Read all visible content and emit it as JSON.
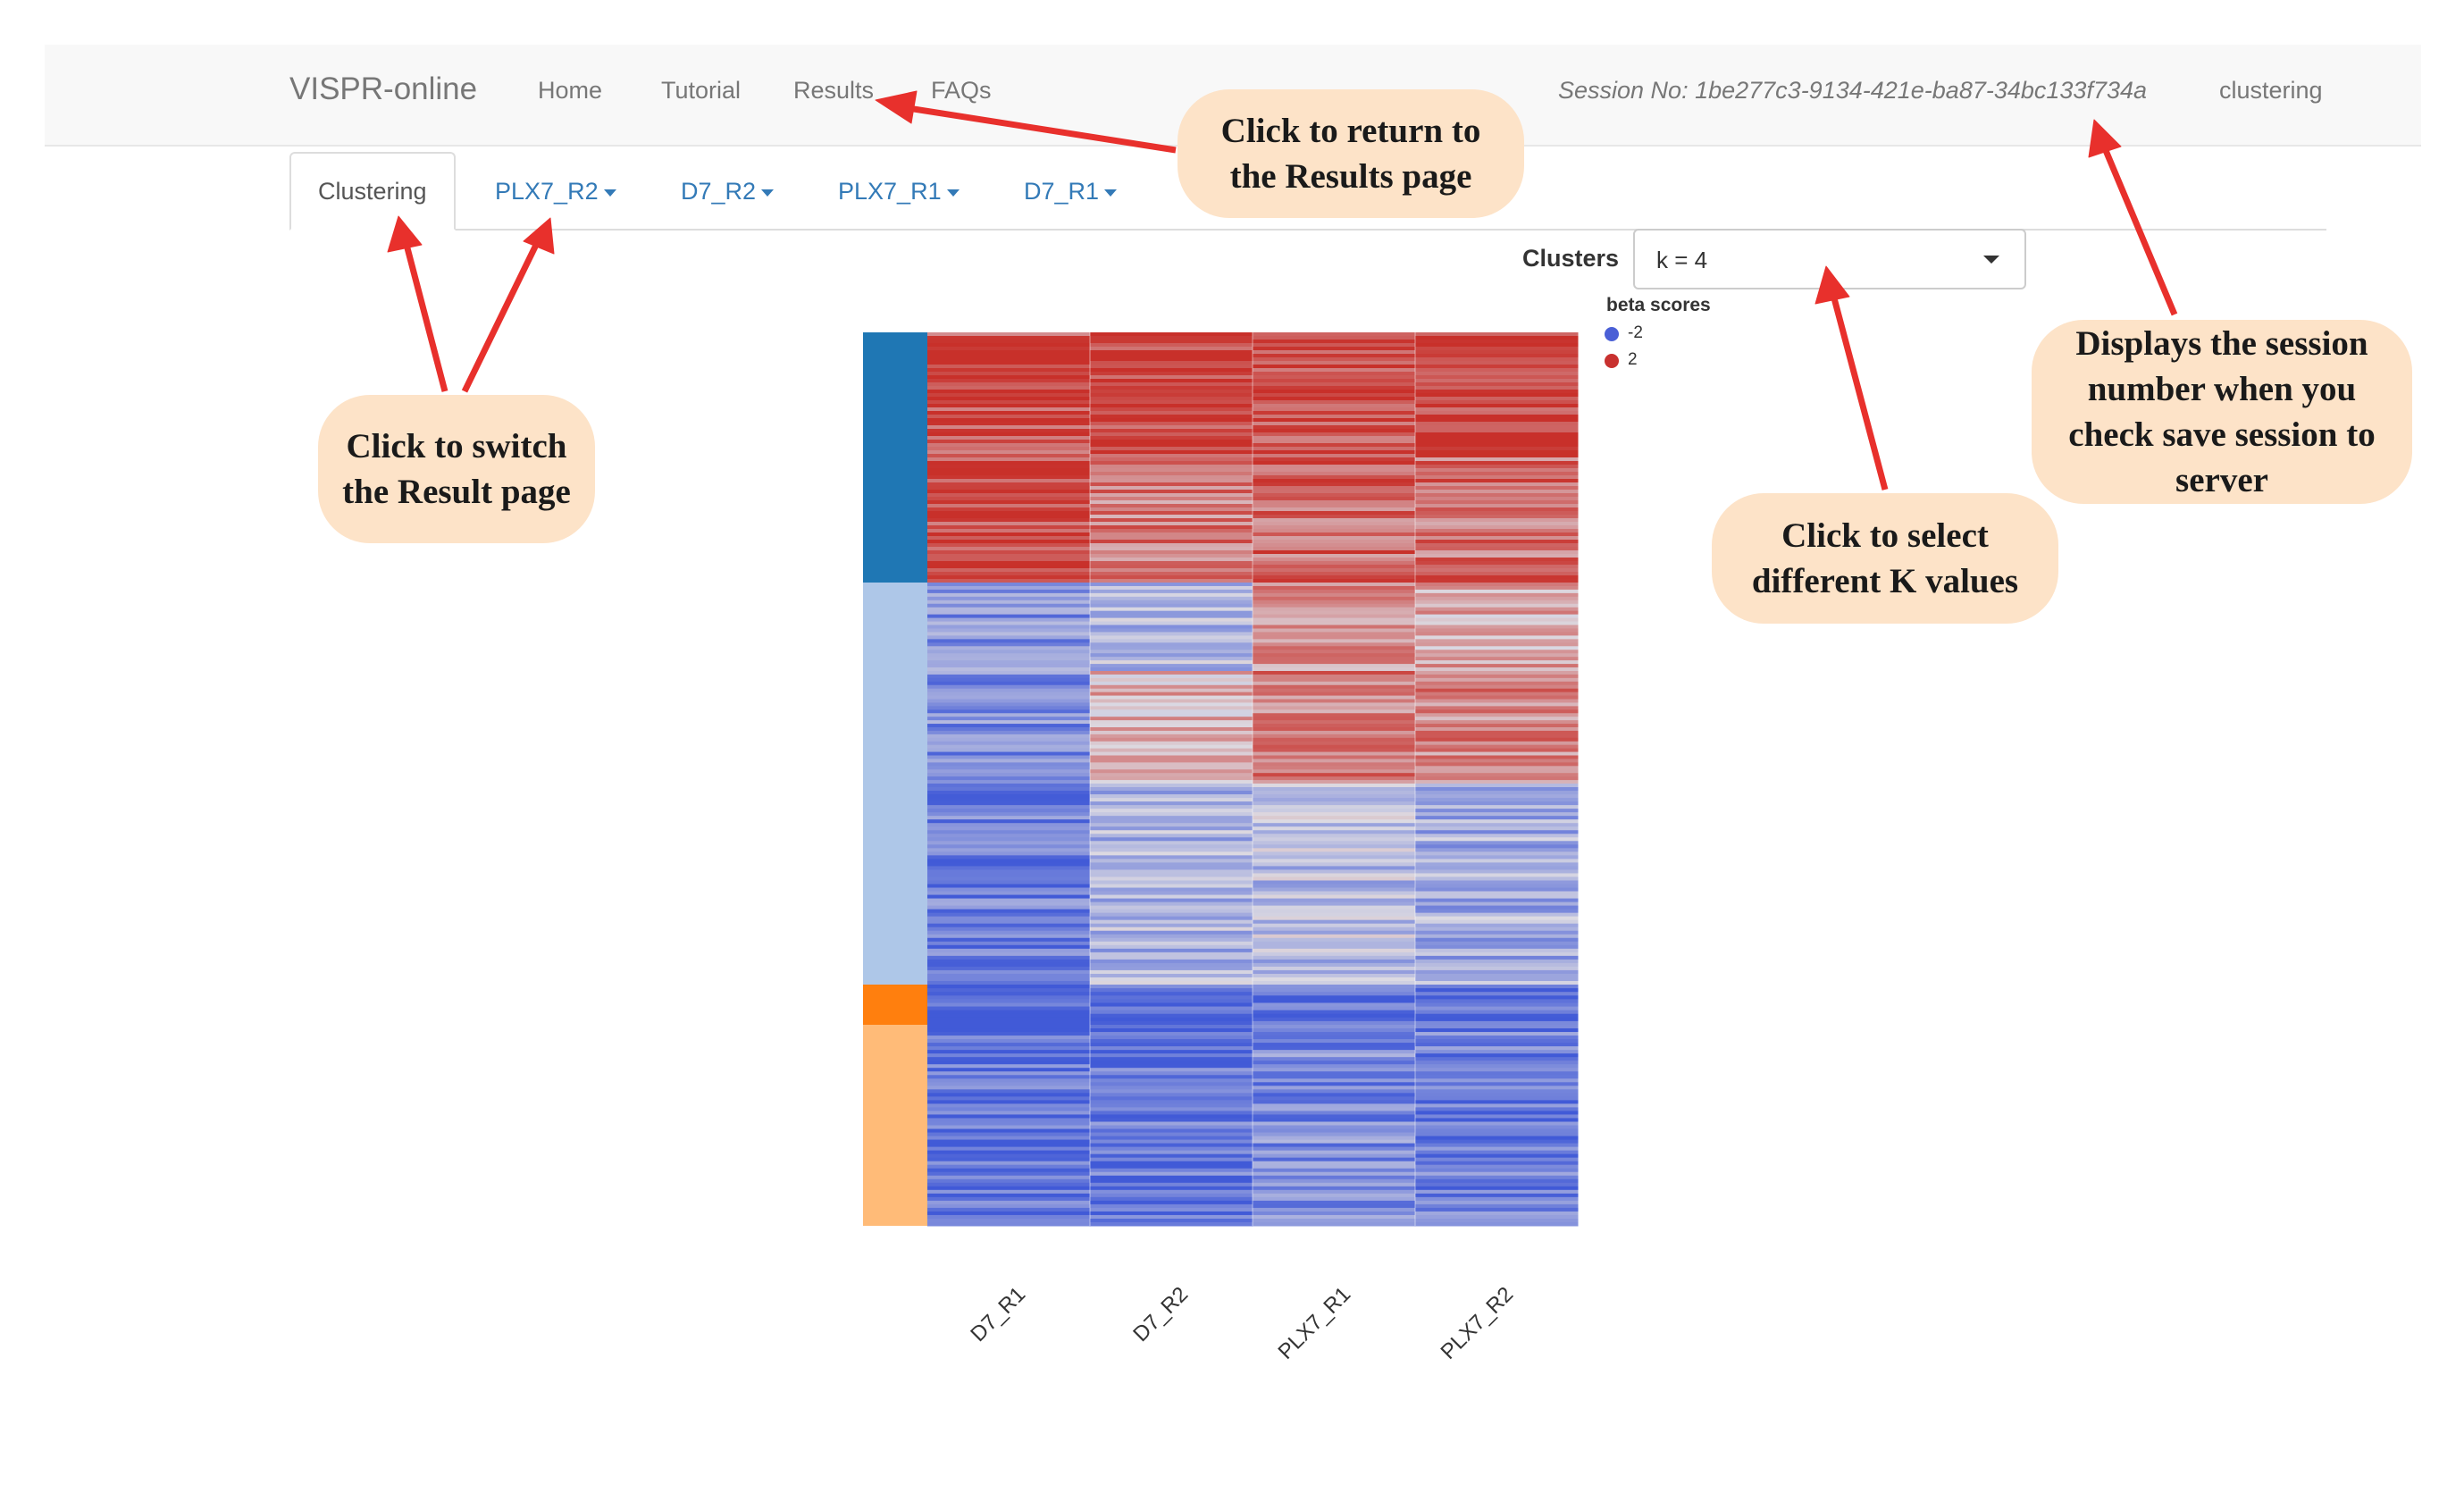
{
  "navbar": {
    "brand": "VISPR-online",
    "links": [
      "Home",
      "Tutorial",
      "Results",
      "FAQs"
    ],
    "session": "Session No: 1be277c3-9134-421e-ba87-34bc133f734a",
    "right_label": "clustering"
  },
  "tabs": [
    {
      "label": "Clustering",
      "active": true,
      "dropdown": false
    },
    {
      "label": "PLX7_R2",
      "active": false,
      "dropdown": true
    },
    {
      "label": "D7_R2",
      "active": false,
      "dropdown": true
    },
    {
      "label": "PLX7_R1",
      "active": false,
      "dropdown": true
    },
    {
      "label": "D7_R1",
      "active": false,
      "dropdown": true
    }
  ],
  "clusters": {
    "label": "Clusters",
    "selected": "k = 4"
  },
  "legend": {
    "title": "beta scores",
    "items": [
      {
        "label": "-2",
        "color": "#4a5fd6"
      },
      {
        "label": "2",
        "color": "#c8312f"
      }
    ]
  },
  "heatmap": {
    "columns": [
      "D7_R1",
      "D7_R2",
      "PLX7_R1",
      "PLX7_R2"
    ],
    "cluster_colors": [
      "#1f77b4",
      "#aec7e8",
      "#ff7f0e",
      "#ffbb78"
    ],
    "cluster_fractions": [
      0.28,
      0.45,
      0.045,
      0.225
    ]
  },
  "annotations": {
    "results": "Click to return to the Results page",
    "switch": "Click to switch the Result page",
    "k_values": "Click to select different K values",
    "session": "Displays the session number when you check save session to server"
  },
  "colors": {
    "accent_link": "#337ab7",
    "callout_bg": "#fde3c8",
    "arrow": "#e8302c"
  }
}
